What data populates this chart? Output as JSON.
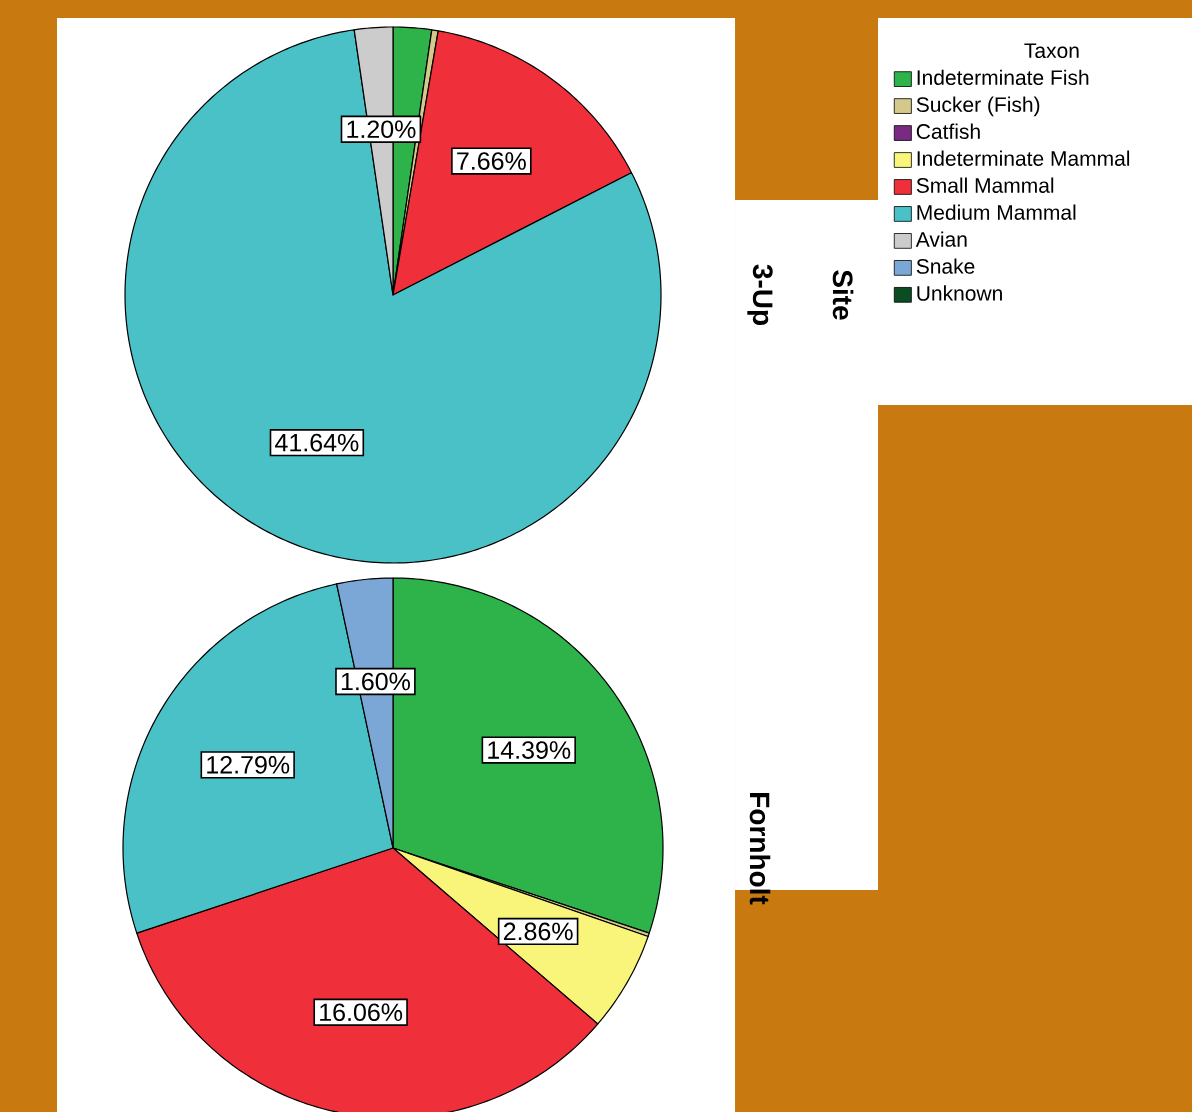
{
  "chart_data": [
    {
      "type": "pie",
      "title": "3-Up",
      "annotations": [
        "Site"
      ],
      "legend_title": "Taxon",
      "legend": "right",
      "categories": [
        "Indeterminate Fish",
        "Sucker (Fish)",
        "Catfish",
        "Indeterminate Mammal",
        "Small Mammal",
        "Medium Mammal",
        "Avian",
        "Snake",
        "Unknown"
      ],
      "values": [
        1.2,
        0.2,
        0,
        0,
        7.66,
        41.64,
        1.2,
        0,
        0
      ],
      "value_labels": [
        null,
        null,
        null,
        null,
        "7.66%",
        "41.64%",
        "1.20%",
        null,
        null
      ],
      "colors": [
        "#2db34a",
        "#d4c98a",
        "#7b2a83",
        "#f8f57a",
        "#ef2f3a",
        "#4ac1c6",
        "#cccccc",
        "#7ba7d6",
        "#0b4d22"
      ]
    },
    {
      "type": "pie",
      "title": "Fornholt",
      "categories": [
        null,
        null,
        null,
        null,
        null,
        null,
        null,
        null,
        null
      ],
      "values": [
        14.39,
        0.1,
        0,
        2.86,
        16.06,
        12.79,
        0,
        1.6,
        0
      ],
      "value_labels": [
        "14.39%",
        null,
        null,
        "2.86%",
        "16.06%",
        "12.79%",
        null,
        "1.60%",
        null
      ],
      "colors": [
        "#2db34a",
        "#d4c98a",
        "#7b2a83",
        "#f8f57a",
        "#ef2f3a",
        "#4ac1c6",
        "#cccccc",
        "#7ba7d6",
        "#0b4d22"
      ]
    }
  ]
}
